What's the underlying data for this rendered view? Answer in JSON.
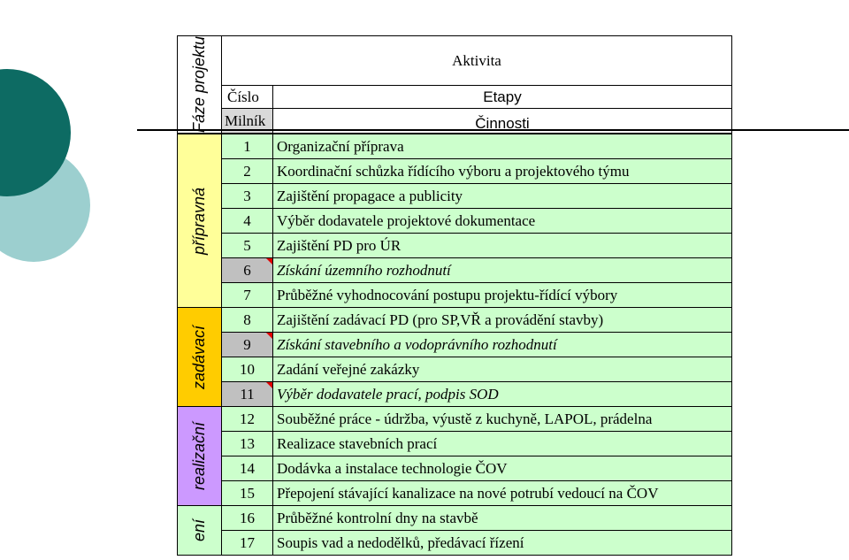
{
  "header": {
    "phase_label": "Fáze projektu",
    "activity": "Aktivita",
    "number": "Číslo",
    "stages": "Etapy",
    "milestone": "Milník",
    "tasks": "Činnosti"
  },
  "phases": [
    {
      "label": "přípravná",
      "color": "#ffff99",
      "rows": 7
    },
    {
      "label": "zadávací",
      "color": "#ffcc00",
      "rows": 4
    },
    {
      "label": "realizační",
      "color": "#cc99ff",
      "rows": 4
    },
    {
      "label": "ení",
      "color": "#ccffcc",
      "rows": 2
    }
  ],
  "rows": [
    {
      "number": "1",
      "text": "Organizační příprava",
      "milestone": false
    },
    {
      "number": "2",
      "text": "Koordinační schůzka řídícího výboru a projektového týmu",
      "milestone": false
    },
    {
      "number": "3",
      "text": "Zajištění propagace a publicity",
      "milestone": false
    },
    {
      "number": "4",
      "text": "Výběr dodavatele projektové dokumentace",
      "milestone": false
    },
    {
      "number": "5",
      "text": "Zajištění PD pro ÚR",
      "milestone": false
    },
    {
      "number": "6",
      "text": "Získání územního rozhodnutí",
      "milestone": true
    },
    {
      "number": "7",
      "text": "Průběžné vyhodnocování postupu projektu-řídící výbory",
      "milestone": false
    },
    {
      "number": "8",
      "text": "Zajištění zadávací PD (pro SP,VŘ a provádění stavby)",
      "milestone": false
    },
    {
      "number": "9",
      "text": "Získání stavebního a vodoprávního rozhodnutí",
      "milestone": true
    },
    {
      "number": "10",
      "text": "Zadání veřejné zakázky",
      "milestone": false
    },
    {
      "number": "11",
      "text": "Výběr dodavatele prací, podpis SOD",
      "milestone": true
    },
    {
      "number": "12",
      "text": "Souběžné práce - údržba, výustě z kuchyně, LAPOL, prádelna",
      "milestone": false
    },
    {
      "number": "13",
      "text": "Realizace stavebních prací",
      "milestone": false
    },
    {
      "number": "14",
      "text": "Dodávka a instalace technologie ČOV",
      "milestone": false
    },
    {
      "number": "15",
      "text": "Přepojení stávající kanalizace na nové potrubí vedoucí na ČOV",
      "milestone": false
    },
    {
      "number": "16",
      "text": "Průběžné kontrolní dny na stavbě",
      "milestone": false
    },
    {
      "number": "17",
      "text": "Soupis vad a nedodělků, předávací řízení",
      "milestone": false
    }
  ]
}
